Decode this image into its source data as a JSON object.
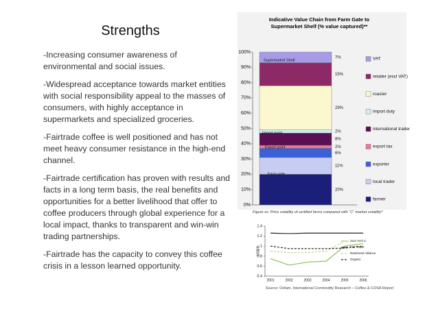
{
  "title": "Strengths",
  "paragraphs": [
    "-Increasing consumer awareness of environmental and social issues.",
    "-Widespread acceptance towards market entities with social responsibility appeal to the masses of consumers, with highly acceptance in supermarkets and specialized groceries.",
    "-Fairtrade coffee is well positioned and has not meet heavy consumer resistance in the high-end channel.",
    "-Fairtrade certification has proven with results and facts in a long term basis, the real benefits and opportunities for a better livelihood that offer to coffee producers through global experience for a local impact, thanks to transparent and win-win trading partnerships.",
    "-Fairtrade has the capacity to convey this coffee crisis in a lesson learned opportunity."
  ],
  "source": "Source: Oxfam, International Commodity Research – Coffee & COSA Report",
  "chart_data": [
    {
      "type": "stacked-bar",
      "title": "Indicative Value Chain from Farm Gate to Supermarket Shelf (% value captured)**",
      "categories": [
        null
      ],
      "annotations": [
        "Supermarket Shelf",
        "Import point",
        "Export point",
        "Farm gate"
      ],
      "series": [
        {
          "name": "farmer",
          "color": "#1c1f7a",
          "values": [
            20
          ],
          "value_labels": [
            "20%"
          ]
        },
        {
          "name": "local trader",
          "color": "#c7cdf2",
          "values": [
            11
          ],
          "value_labels": [
            "11%"
          ]
        },
        {
          "name": "exporter",
          "color": "#3a5fd6",
          "values": [
            6
          ],
          "value_labels": [
            "6%"
          ]
        },
        {
          "name": "export tax",
          "color": "#e8799a",
          "values": [
            2
          ],
          "value_labels": [
            "2%"
          ]
        },
        {
          "name": "international trader",
          "color": "#5a0f52",
          "values": [
            8
          ],
          "value_labels": [
            "8%"
          ]
        },
        {
          "name": "import duty",
          "color": "#cdeef5",
          "values": [
            2
          ],
          "value_labels": [
            "2%"
          ]
        },
        {
          "name": "roaster",
          "color": "#fbf8d0",
          "values": [
            29
          ],
          "value_labels": [
            "29%"
          ]
        },
        {
          "name": "retailer (excl VAT)",
          "color": "#8d2a66",
          "values": [
            15
          ],
          "value_labels": [
            "15%"
          ]
        },
        {
          "name": "VAT",
          "color": "#a79be8",
          "values": [
            7
          ],
          "value_labels": [
            "7%"
          ]
        }
      ],
      "ylim": [
        0,
        100
      ],
      "yticks": [
        {
          "value": 0,
          "label": "0%"
        },
        {
          "value": 10,
          "label": "10%"
        },
        {
          "value": 20,
          "label": "20%"
        },
        {
          "value": 30,
          "label": "30%"
        },
        {
          "value": 40,
          "label": "40%"
        },
        {
          "value": 50,
          "label": "50%"
        },
        {
          "value": 60,
          "label": "60%"
        },
        {
          "value": 70,
          "label": "70%"
        },
        {
          "value": 80,
          "label": "80%"
        },
        {
          "value": 90,
          "label": "90%"
        },
        {
          "value": 100,
          "label": "100%"
        }
      ]
    },
    {
      "type": "line",
      "title": "Figure xx: Price volatility of certified farms compared with “C” market volatility*",
      "ylabel": "US$/lb",
      "categories": [
        "2001",
        "2002",
        "2003",
        "2004",
        "2005",
        "2006"
      ],
      "series": [
        {
          "name": "New York C",
          "color": "#8fbf5a",
          "dash": false,
          "values": [
            0.75,
            0.62,
            0.68,
            0.7,
            1.0,
            1.05
          ]
        },
        {
          "name": "Fair Trade",
          "color": "#222222",
          "dash": false,
          "values": [
            1.26,
            1.25,
            1.26,
            1.26,
            1.26,
            1.26
          ]
        },
        {
          "name": "Rainforest Alliance",
          "color": "#b9d88a",
          "dash": true,
          "values": [
            0.9,
            0.87,
            0.87,
            0.9,
            1.1,
            1.1
          ]
        },
        {
          "name": "Organic",
          "color": "#222222",
          "dash": true,
          "values": [
            1.0,
            0.95,
            0.95,
            0.95,
            0.96,
            1.0
          ]
        }
      ],
      "ylim": [
        0.4,
        1.4
      ],
      "yticks": [
        0.4,
        0.6,
        0.8,
        1,
        1.2,
        1.4
      ]
    }
  ]
}
